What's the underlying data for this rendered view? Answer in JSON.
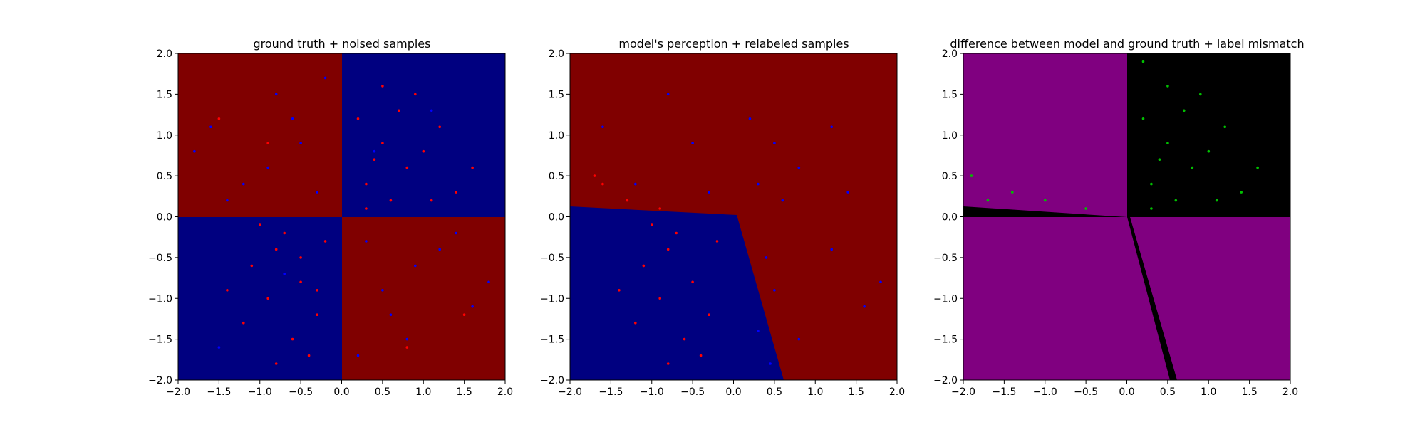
{
  "chart_data": [
    {
      "type": "scatter",
      "title": "ground truth + noised samples",
      "xlim": [
        -2.0,
        2.0
      ],
      "ylim": [
        -2.0,
        2.0
      ],
      "xticks": [
        "−2.0",
        "−1.5",
        "−1.0",
        "−0.5",
        "0.0",
        "0.5",
        "1.0",
        "1.5",
        "2.0"
      ],
      "yticks": [
        "−2.0",
        "−1.5",
        "−1.0",
        "−0.5",
        "0.0",
        "0.5",
        "1.0",
        "1.5",
        "2.0"
      ],
      "background": "checkerboard quadrants: red (#800000) in upper-left and lower-right, blue (#000080) in upper-right and lower-left",
      "series": [
        {
          "color": "#ff0000",
          "points": [
            [
              0.5,
              0.9
            ],
            [
              0.8,
              0.6
            ],
            [
              0.3,
              0.4
            ],
            [
              1.2,
              1.1
            ],
            [
              0.6,
              0.2
            ],
            [
              0.9,
              1.5
            ],
            [
              0.2,
              1.2
            ],
            [
              1.4,
              0.3
            ],
            [
              0.4,
              0.7
            ],
            [
              1.0,
              0.8
            ],
            [
              0.7,
              1.3
            ],
            [
              0.3,
              0.1
            ],
            [
              1.6,
              0.6
            ],
            [
              1.1,
              0.2
            ],
            [
              0.5,
              1.6
            ],
            [
              -0.5,
              -0.8
            ],
            [
              -0.8,
              -0.4
            ],
            [
              -0.3,
              -1.2
            ],
            [
              -1.1,
              -0.6
            ],
            [
              -0.6,
              -1.5
            ],
            [
              -0.9,
              -1.0
            ],
            [
              -0.2,
              -0.3
            ],
            [
              -1.4,
              -0.9
            ],
            [
              -0.7,
              -0.2
            ],
            [
              -0.4,
              -1.7
            ],
            [
              -1.2,
              -1.3
            ],
            [
              -0.5,
              -0.5
            ],
            [
              -1.0,
              -0.1
            ],
            [
              -0.8,
              -1.8
            ],
            [
              -0.3,
              -0.9
            ],
            [
              1.5,
              -1.2
            ],
            [
              -1.5,
              1.2
            ],
            [
              0.8,
              -1.6
            ],
            [
              -0.9,
              0.9
            ]
          ]
        },
        {
          "color": "#0000ff",
          "points": [
            [
              -0.5,
              0.9
            ],
            [
              -1.2,
              0.4
            ],
            [
              -0.8,
              1.5
            ],
            [
              -0.3,
              0.3
            ],
            [
              -1.6,
              1.1
            ],
            [
              -0.9,
              0.6
            ],
            [
              -0.2,
              1.7
            ],
            [
              -1.4,
              0.2
            ],
            [
              -0.6,
              1.2
            ],
            [
              -1.8,
              0.8
            ],
            [
              0.5,
              -0.9
            ],
            [
              1.2,
              -0.4
            ],
            [
              0.8,
              -1.5
            ],
            [
              0.3,
              -0.3
            ],
            [
              1.6,
              -1.1
            ],
            [
              0.9,
              -0.6
            ],
            [
              0.2,
              -1.7
            ],
            [
              1.4,
              -0.2
            ],
            [
              0.6,
              -1.2
            ],
            [
              1.8,
              -0.8
            ],
            [
              0.4,
              0.8
            ],
            [
              1.1,
              1.3
            ],
            [
              -0.7,
              -0.7
            ],
            [
              -1.5,
              -1.6
            ]
          ]
        }
      ]
    },
    {
      "type": "scatter",
      "title": "model's perception + relabeled samples",
      "xlim": [
        -2.0,
        2.0
      ],
      "ylim": [
        -2.0,
        2.0
      ],
      "xticks": [
        "−2.0",
        "−1.5",
        "−1.0",
        "−0.5",
        "0.0",
        "0.5",
        "1.0",
        "1.5",
        "2.0"
      ],
      "yticks": [
        "−2.0",
        "−1.5",
        "−1.0",
        "−0.5",
        "0.0",
        "0.5",
        "1.0",
        "1.5",
        "2.0"
      ],
      "background": "red (#800000) everywhere except a blue (#000080) region bounded by a line from (-2.0, 0.13) to (0.03, 0.02) and a line from (0.03, 0.02) to (0.6, -2.0)",
      "series": [
        {
          "color": "#ff0000",
          "points": [
            [
              -0.5,
              -0.8
            ],
            [
              -0.8,
              -0.4
            ],
            [
              -0.3,
              -1.2
            ],
            [
              -1.1,
              -0.6
            ],
            [
              -0.6,
              -1.5
            ],
            [
              -0.9,
              -1.0
            ],
            [
              -0.2,
              -0.3
            ],
            [
              -1.4,
              -0.9
            ],
            [
              -0.7,
              -0.2
            ],
            [
              -0.4,
              -1.7
            ],
            [
              -1.2,
              -1.3
            ],
            [
              -1.0,
              -0.1
            ],
            [
              -0.8,
              -1.8
            ],
            [
              -1.6,
              0.4
            ],
            [
              -1.3,
              0.2
            ],
            [
              -1.7,
              0.5
            ],
            [
              -0.9,
              0.1
            ]
          ]
        },
        {
          "color": "#0000ff",
          "points": [
            [
              0.5,
              0.9
            ],
            [
              0.8,
              0.6
            ],
            [
              1.2,
              1.1
            ],
            [
              0.6,
              0.2
            ],
            [
              -0.5,
              0.9
            ],
            [
              -1.2,
              0.4
            ],
            [
              -0.8,
              1.5
            ],
            [
              0.5,
              -0.9
            ],
            [
              1.2,
              -0.4
            ],
            [
              0.8,
              -1.5
            ],
            [
              1.6,
              -1.1
            ],
            [
              0.3,
              0.4
            ],
            [
              -0.3,
              0.3
            ],
            [
              1.4,
              0.3
            ],
            [
              0.2,
              1.2
            ],
            [
              0.4,
              -0.5
            ],
            [
              0.3,
              -1.4
            ],
            [
              0.45,
              -1.8
            ],
            [
              -1.6,
              1.1
            ],
            [
              1.8,
              -0.8
            ]
          ]
        }
      ]
    },
    {
      "type": "scatter",
      "title": "difference between model and ground truth + label mismatch",
      "xlim": [
        -2.0,
        2.0
      ],
      "ylim": [
        -2.0,
        2.0
      ],
      "xticks": [
        "−2.0",
        "−1.5",
        "−1.0",
        "−0.5",
        "0.0",
        "0.5",
        "1.0",
        "1.5",
        "2.0"
      ],
      "yticks": [
        "−2.0",
        "−1.5",
        "−1.0",
        "−0.5",
        "0.0",
        "0.5",
        "1.0",
        "1.5",
        "2.0"
      ],
      "background": "purple (#800080) where model agrees with ground truth, black where they differ: upper-right quadrant, thin wedge above the x-axis on the left, and a slanted strip from (0.0, 0.0) to (0.6, -2.0)",
      "series": [
        {
          "color": "#00c000",
          "points": [
            [
              0.5,
              0.9
            ],
            [
              0.8,
              0.6
            ],
            [
              0.3,
              0.4
            ],
            [
              1.2,
              1.1
            ],
            [
              0.6,
              0.2
            ],
            [
              0.9,
              1.5
            ],
            [
              0.2,
              1.2
            ],
            [
              1.4,
              0.3
            ],
            [
              0.4,
              0.7
            ],
            [
              1.0,
              0.8
            ],
            [
              0.7,
              1.3
            ],
            [
              0.3,
              0.1
            ],
            [
              1.6,
              0.6
            ],
            [
              1.1,
              0.2
            ],
            [
              0.5,
              1.6
            ],
            [
              0.2,
              1.9
            ],
            [
              -1.9,
              0.5
            ],
            [
              -1.4,
              0.3
            ],
            [
              -1.0,
              0.2
            ],
            [
              -0.5,
              0.1
            ],
            [
              -1.7,
              0.2
            ]
          ]
        }
      ]
    }
  ]
}
